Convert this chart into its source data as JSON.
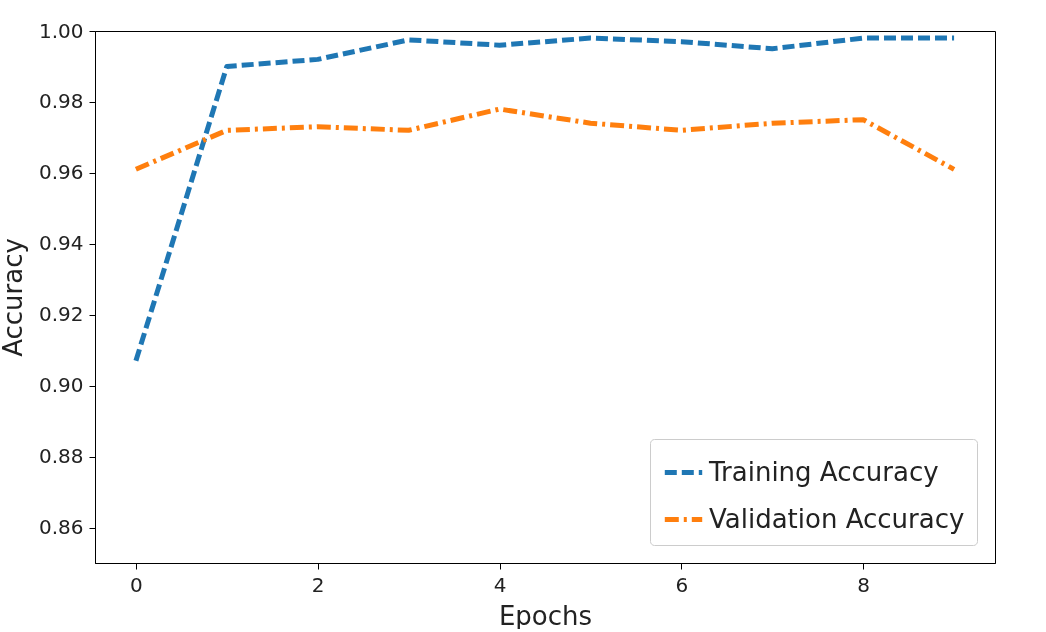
{
  "chart_data": {
    "type": "line",
    "xlabel": "Epochs",
    "ylabel": "Accuracy",
    "x": [
      0,
      1,
      2,
      3,
      4,
      5,
      6,
      7,
      8,
      9
    ],
    "series": [
      {
        "name": "Training Accuracy",
        "color": "#1f77b4",
        "line_style": "dashed",
        "values": [
          0.907,
          0.99,
          0.992,
          0.9975,
          0.996,
          0.998,
          0.997,
          0.995,
          0.998,
          0.998
        ]
      },
      {
        "name": "Validation Accuracy",
        "color": "#ff7f0e",
        "line_style": "dashdot",
        "values": [
          0.961,
          0.972,
          0.973,
          0.972,
          0.978,
          0.974,
          0.972,
          0.974,
          0.975,
          0.961
        ]
      }
    ],
    "xlim": [
      -0.45,
      9.45
    ],
    "xticks": [
      0,
      2,
      4,
      6,
      8
    ],
    "ylim": [
      0.85,
      1.0
    ],
    "yticks": [
      {
        "value": 0.86,
        "label": "0.86"
      },
      {
        "value": 0.88,
        "label": "0.88"
      },
      {
        "value": 0.9,
        "label": "0.90"
      },
      {
        "value": 0.92,
        "label": "0.92"
      },
      {
        "value": 0.94,
        "label": "0.94"
      },
      {
        "value": 0.96,
        "label": "0.96"
      },
      {
        "value": 0.98,
        "label": "0.98"
      },
      {
        "value": 1.0,
        "label": "1.00"
      }
    ],
    "grid": false,
    "legend": "bottom right",
    "marker": "none"
  }
}
